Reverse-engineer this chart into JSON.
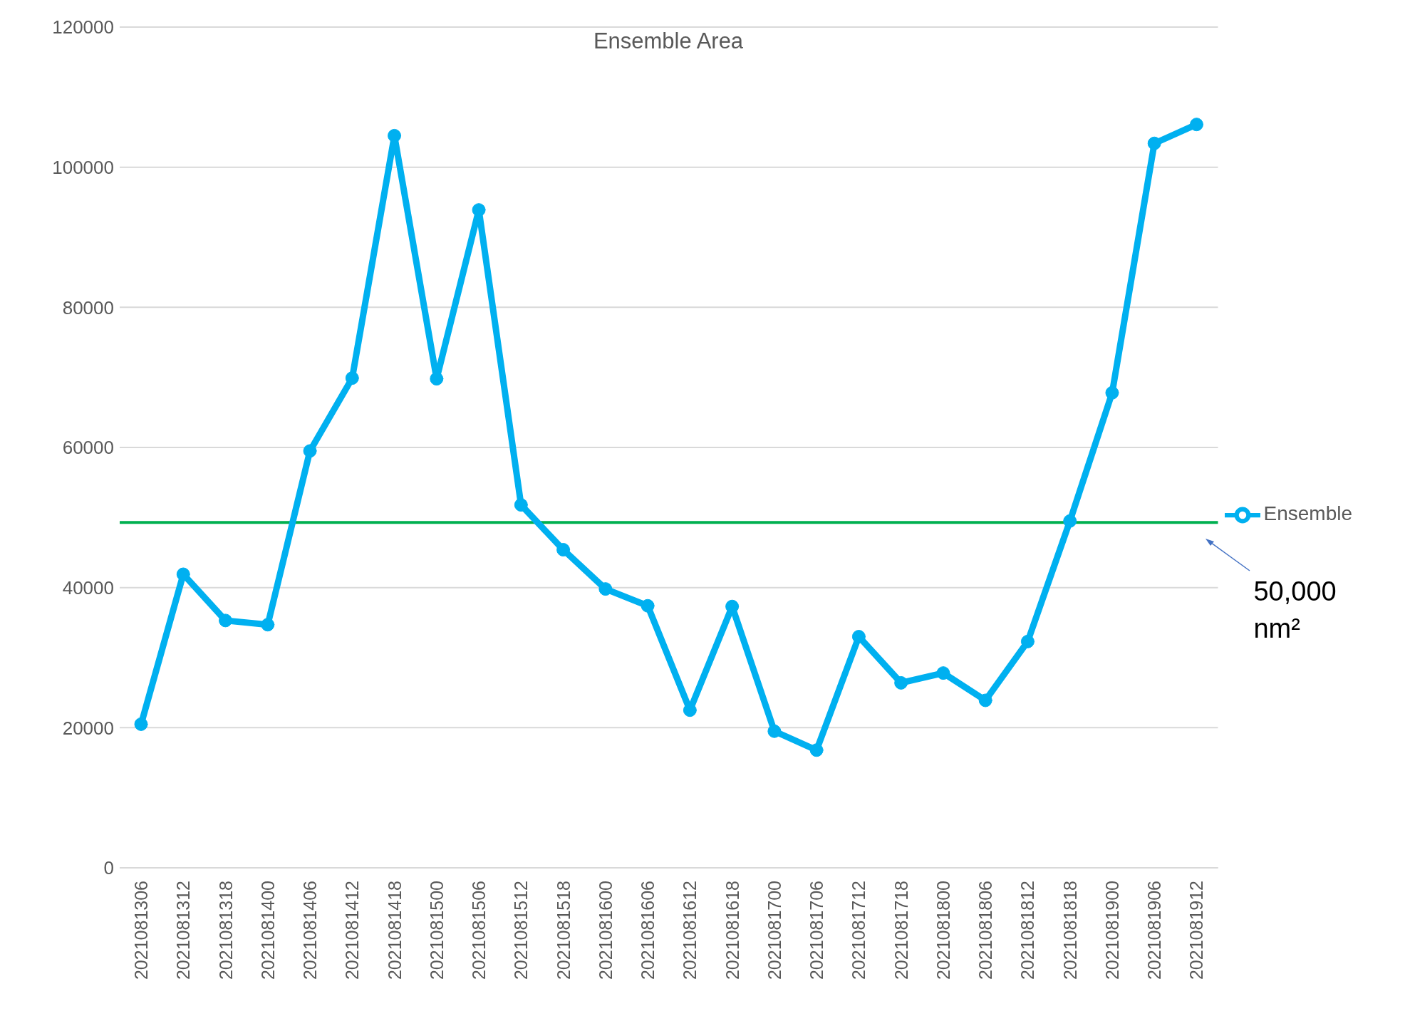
{
  "chart_data": {
    "type": "line",
    "title": "Ensemble Area",
    "categories": [
      "2021081306",
      "2021081312",
      "2021081318",
      "2021081400",
      "2021081406",
      "2021081412",
      "2021081418",
      "2021081500",
      "2021081506",
      "2021081512",
      "2021081518",
      "2021081600",
      "2021081606",
      "2021081612",
      "2021081618",
      "2021081700",
      "2021081706",
      "2021081712",
      "2021081718",
      "2021081800",
      "2021081806",
      "2021081812",
      "2021081818",
      "2021081900",
      "2021081906",
      "2021081912"
    ],
    "series": [
      {
        "name": "Ensemble",
        "color": "#00b0f0",
        "values": [
          20500,
          41900,
          35300,
          34700,
          59500,
          69900,
          104500,
          69800,
          93900,
          51800,
          45400,
          39800,
          37400,
          22500,
          37300,
          19500,
          16800,
          33000,
          26400,
          27800,
          23900,
          32300,
          49500,
          67800,
          103400,
          106100
        ]
      }
    ],
    "ylim": [
      0,
      120000
    ],
    "yticks": [
      0,
      20000,
      40000,
      60000,
      80000,
      100000,
      120000
    ],
    "grid": "y",
    "legend": "right",
    "marker": "circle",
    "line_style": "solid",
    "ref_lines": [
      {
        "axis": "y",
        "value": 49300,
        "label": "50,000 nm²",
        "color": "#00b050"
      }
    ]
  }
}
